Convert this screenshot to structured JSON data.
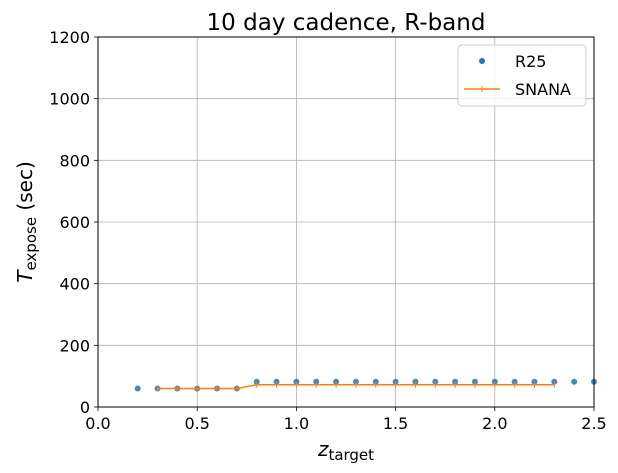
{
  "chart_data": {
    "type": "line",
    "title": "10 day cadence, R-band",
    "xlabel": {
      "symbol": "z",
      "subscript": "target"
    },
    "ylabel": {
      "symbol": "T",
      "subscript": "expose",
      "unit": "(sec)"
    },
    "xlim": [
      0.0,
      2.5
    ],
    "ylim": [
      0,
      1200
    ],
    "xticks": [
      "0.0",
      "0.5",
      "1.0",
      "1.5",
      "2.0",
      "2.5"
    ],
    "yticks": [
      "0",
      "200",
      "400",
      "600",
      "800",
      "1000",
      "1200"
    ],
    "grid": true,
    "legend_position": "top-right",
    "series": [
      {
        "name": "R25",
        "style": "markers",
        "color": "#1f77b4",
        "x": [
          0.2,
          0.3,
          0.4,
          0.5,
          0.6,
          0.7,
          0.8,
          0.9,
          1.0,
          1.1,
          1.2,
          1.3,
          1.4,
          1.5,
          1.6,
          1.7,
          1.8,
          1.9,
          2.0,
          2.1,
          2.2,
          2.3,
          2.4,
          2.5
        ],
        "y": [
          60,
          60,
          60,
          60,
          60,
          60,
          82,
          82,
          82,
          82,
          82,
          82,
          82,
          82,
          82,
          82,
          82,
          82,
          82,
          82,
          82,
          82,
          82,
          82
        ]
      },
      {
        "name": "SNANA",
        "style": "line-plus",
        "color": "#ff7f0e",
        "x": [
          0.3,
          0.4,
          0.5,
          0.6,
          0.7,
          0.8,
          0.9,
          1.0,
          1.1,
          1.2,
          1.3,
          1.4,
          1.5,
          1.6,
          1.7,
          1.8,
          1.9,
          2.0,
          2.1,
          2.2,
          2.3
        ],
        "y": [
          60,
          60,
          60,
          60,
          60,
          72,
          72,
          72,
          72,
          72,
          72,
          72,
          72,
          72,
          72,
          72,
          72,
          72,
          72,
          72,
          72
        ]
      }
    ]
  }
}
